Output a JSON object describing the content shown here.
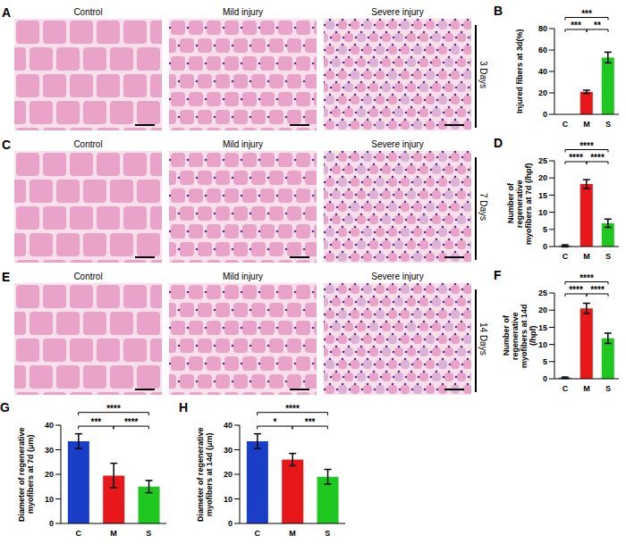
{
  "micrographs": [
    {
      "panel": "A",
      "time": "3 Days",
      "images": [
        "Control",
        "Mild injury",
        "Severe injury"
      ]
    },
    {
      "panel": "C",
      "time": "7 Days",
      "images": [
        "Control",
        "Mild injury",
        "Severe injury"
      ]
    },
    {
      "panel": "E",
      "time": "14 Days",
      "images": [
        "Control",
        "Mild injury",
        "Severe injury"
      ]
    }
  ],
  "chart_data": [
    {
      "panel": "B",
      "type": "bar",
      "y_label": "Injured fibers at 3d(%)",
      "categories": [
        "C",
        "M",
        "S"
      ],
      "values": [
        0,
        21,
        53
      ],
      "errors": [
        0,
        1.5,
        5
      ],
      "colors": [
        "#1a3ec8",
        "#e8181a",
        "#1ec81e"
      ],
      "ylim": [
        0,
        80
      ],
      "yticks": [
        0,
        20,
        40,
        60,
        80
      ],
      "significance": [
        {
          "pair": [
            "C",
            "S"
          ],
          "label": "***"
        },
        {
          "pair": [
            "C",
            "M"
          ],
          "label": "***"
        },
        {
          "pair": [
            "M",
            "S"
          ],
          "label": "**"
        }
      ]
    },
    {
      "panel": "D",
      "type": "bar",
      "y_label": "Number of regenerative myofibers at 7d (/hpf)",
      "categories": [
        "C",
        "M",
        "S"
      ],
      "values": [
        0.2,
        18.2,
        6.8
      ],
      "errors": [
        0.3,
        1.3,
        1.2
      ],
      "colors": [
        "#1a3ec8",
        "#e8181a",
        "#1ec81e"
      ],
      "ylim": [
        0,
        25
      ],
      "yticks": [
        0,
        5,
        10,
        15,
        20,
        25
      ],
      "significance": [
        {
          "pair": [
            "C",
            "S"
          ],
          "label": "****"
        },
        {
          "pair": [
            "C",
            "M"
          ],
          "label": "****"
        },
        {
          "pair": [
            "M",
            "S"
          ],
          "label": "****"
        }
      ]
    },
    {
      "panel": "F",
      "type": "bar",
      "y_label": "Number of regenerative myofibers at 14d (/hpf)",
      "categories": [
        "C",
        "M",
        "S"
      ],
      "values": [
        0.3,
        20.5,
        11.8
      ],
      "errors": [
        0.2,
        1.5,
        1.5
      ],
      "colors": [
        "#1a3ec8",
        "#e8181a",
        "#1ec81e"
      ],
      "ylim": [
        0,
        25
      ],
      "yticks": [
        0,
        5,
        10,
        15,
        20,
        25
      ],
      "significance": [
        {
          "pair": [
            "C",
            "S"
          ],
          "label": "****"
        },
        {
          "pair": [
            "C",
            "M"
          ],
          "label": "****"
        },
        {
          "pair": [
            "M",
            "S"
          ],
          "label": "****"
        }
      ]
    },
    {
      "panel": "G",
      "type": "bar",
      "y_label": "Diameter of regenerative myofibers at 7d (μm)",
      "categories": [
        "C",
        "M",
        "S"
      ],
      "values": [
        33.5,
        19.5,
        15
      ],
      "errors": [
        3,
        5,
        2.5
      ],
      "colors": [
        "#1a3ec8",
        "#e8181a",
        "#1ec81e"
      ],
      "ylim": [
        0,
        40
      ],
      "yticks": [
        0,
        10,
        20,
        30,
        40
      ],
      "significance": [
        {
          "pair": [
            "C",
            "S"
          ],
          "label": "****"
        },
        {
          "pair": [
            "C",
            "M"
          ],
          "label": "***"
        },
        {
          "pair": [
            "M",
            "S"
          ],
          "label": "****"
        }
      ]
    },
    {
      "panel": "H",
      "type": "bar",
      "y_label": "Diameter of regenerative myofibers at 14d (μm)",
      "categories": [
        "C",
        "M",
        "S"
      ],
      "values": [
        33.5,
        26,
        19
      ],
      "errors": [
        3,
        2.5,
        3
      ],
      "colors": [
        "#1a3ec8",
        "#e8181a",
        "#1ec81e"
      ],
      "ylim": [
        0,
        40
      ],
      "yticks": [
        0,
        10,
        20,
        30,
        40
      ],
      "significance": [
        {
          "pair": [
            "C",
            "S"
          ],
          "label": "****"
        },
        {
          "pair": [
            "C",
            "M"
          ],
          "label": "*"
        },
        {
          "pair": [
            "M",
            "S"
          ],
          "label": "***"
        }
      ]
    }
  ]
}
